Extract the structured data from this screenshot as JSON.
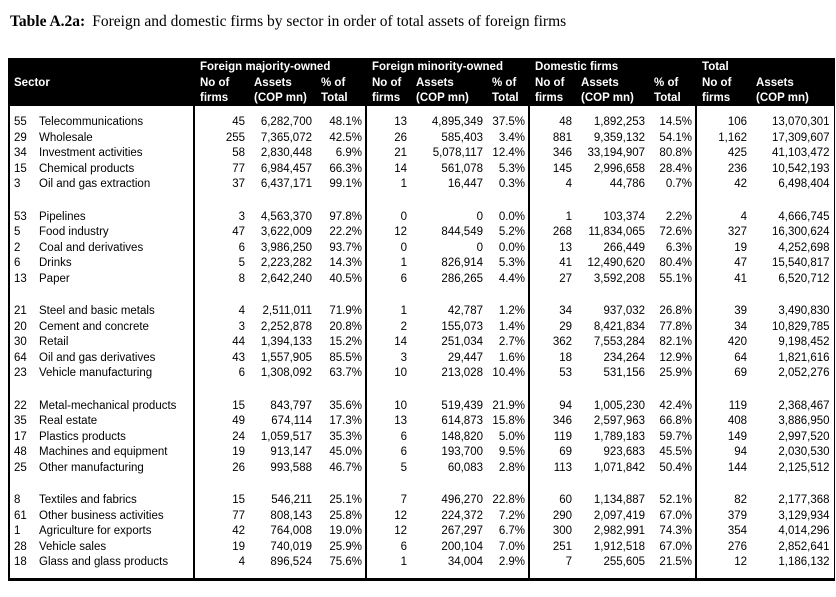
{
  "caption": {
    "label": "Table A.2a:",
    "text": "Foreign and domestic firms by sector in order of total assets of foreign firms"
  },
  "table": {
    "header": {
      "sector": "Sector",
      "group_titles": [
        "Foreign majority-owned",
        "Foreign minority-owned",
        "Domestic firms",
        "Total"
      ],
      "no_of": "No of",
      "firms": "firms",
      "assets": "Assets",
      "cop_mn": "(COP mn)",
      "pct_of": "% of",
      "total": "Total"
    },
    "groups": [
      {
        "rows": [
          {
            "id": "55",
            "sector": "Telecommunications",
            "values": [
              "45",
              "6,282,700",
              "48.1%",
              "13",
              "4,895,349",
              "37.5%",
              "48",
              "1,892,253",
              "14.5%",
              "106",
              "13,070,301"
            ]
          },
          {
            "id": "29",
            "sector": "Wholesale",
            "values": [
              "255",
              "7,365,072",
              "42.5%",
              "26",
              "585,403",
              "3.4%",
              "881",
              "9,359,132",
              "54.1%",
              "1,162",
              "17,309,607"
            ]
          },
          {
            "id": "34",
            "sector": "Investment activities",
            "values": [
              "58",
              "2,830,448",
              "6.9%",
              "21",
              "5,078,117",
              "12.4%",
              "346",
              "33,194,907",
              "80.8%",
              "425",
              "41,103,472"
            ]
          },
          {
            "id": "15",
            "sector": "Chemical products",
            "values": [
              "77",
              "6,984,457",
              "66.3%",
              "14",
              "561,078",
              "5.3%",
              "145",
              "2,996,658",
              "28.4%",
              "236",
              "10,542,193"
            ]
          },
          {
            "id": "3",
            "sector": "Oil and gas extraction",
            "values": [
              "37",
              "6,437,171",
              "99.1%",
              "1",
              "16,447",
              "0.3%",
              "4",
              "44,786",
              "0.7%",
              "42",
              "6,498,404"
            ]
          }
        ]
      },
      {
        "rows": [
          {
            "id": "53",
            "sector": "Pipelines",
            "values": [
              "3",
              "4,563,370",
              "97.8%",
              "0",
              "0",
              "0.0%",
              "1",
              "103,374",
              "2.2%",
              "4",
              "4,666,745"
            ]
          },
          {
            "id": "5",
            "sector": "Food industry",
            "values": [
              "47",
              "3,622,009",
              "22.2%",
              "12",
              "844,549",
              "5.2%",
              "268",
              "11,834,065",
              "72.6%",
              "327",
              "16,300,624"
            ]
          },
          {
            "id": "2",
            "sector": "Coal and derivatives",
            "values": [
              "6",
              "3,986,250",
              "93.7%",
              "0",
              "0",
              "0.0%",
              "13",
              "266,449",
              "6.3%",
              "19",
              "4,252,698"
            ]
          },
          {
            "id": "6",
            "sector": "Drinks",
            "values": [
              "5",
              "2,223,282",
              "14.3%",
              "1",
              "826,914",
              "5.3%",
              "41",
              "12,490,620",
              "80.4%",
              "47",
              "15,540,817"
            ]
          },
          {
            "id": "13",
            "sector": "Paper",
            "values": [
              "8",
              "2,642,240",
              "40.5%",
              "6",
              "286,265",
              "4.4%",
              "27",
              "3,592,208",
              "55.1%",
              "41",
              "6,520,712"
            ]
          }
        ]
      },
      {
        "rows": [
          {
            "id": "21",
            "sector": "Steel and basic metals",
            "values": [
              "4",
              "2,511,011",
              "71.9%",
              "1",
              "42,787",
              "1.2%",
              "34",
              "937,032",
              "26.8%",
              "39",
              "3,490,830"
            ]
          },
          {
            "id": "20",
            "sector": "Cement and concrete",
            "values": [
              "3",
              "2,252,878",
              "20.8%",
              "2",
              "155,073",
              "1.4%",
              "29",
              "8,421,834",
              "77.8%",
              "34",
              "10,829,785"
            ]
          },
          {
            "id": "30",
            "sector": "Retail",
            "values": [
              "44",
              "1,394,133",
              "15.2%",
              "14",
              "251,034",
              "2.7%",
              "362",
              "7,553,284",
              "82.1%",
              "420",
              "9,198,452"
            ]
          },
          {
            "id": "64",
            "sector": "Oil and gas derivatives",
            "values": [
              "43",
              "1,557,905",
              "85.5%",
              "3",
              "29,447",
              "1.6%",
              "18",
              "234,264",
              "12.9%",
              "64",
              "1,821,616"
            ]
          },
          {
            "id": "23",
            "sector": "Vehicle manufacturing",
            "values": [
              "6",
              "1,308,092",
              "63.7%",
              "10",
              "213,028",
              "10.4%",
              "53",
              "531,156",
              "25.9%",
              "69",
              "2,052,276"
            ]
          }
        ]
      },
      {
        "rows": [
          {
            "id": "22",
            "sector": "Metal-mechanical products",
            "values": [
              "15",
              "843,797",
              "35.6%",
              "10",
              "519,439",
              "21.9%",
              "94",
              "1,005,230",
              "42.4%",
              "119",
              "2,368,467"
            ]
          },
          {
            "id": "35",
            "sector": "Real estate",
            "values": [
              "49",
              "674,114",
              "17.3%",
              "13",
              "614,873",
              "15.8%",
              "346",
              "2,597,963",
              "66.8%",
              "408",
              "3,886,950"
            ]
          },
          {
            "id": "17",
            "sector": "Plastics products",
            "values": [
              "24",
              "1,059,517",
              "35.3%",
              "6",
              "148,820",
              "5.0%",
              "119",
              "1,789,183",
              "59.7%",
              "149",
              "2,997,520"
            ]
          },
          {
            "id": "48",
            "sector": "Machines and equipment",
            "values": [
              "19",
              "913,147",
              "45.0%",
              "6",
              "193,700",
              "9.5%",
              "69",
              "923,683",
              "45.5%",
              "94",
              "2,030,530"
            ]
          },
          {
            "id": "25",
            "sector": "Other manufacturing",
            "values": [
              "26",
              "993,588",
              "46.7%",
              "5",
              "60,083",
              "2.8%",
              "113",
              "1,071,842",
              "50.4%",
              "144",
              "2,125,512"
            ]
          }
        ]
      },
      {
        "rows": [
          {
            "id": "8",
            "sector": "Textiles and fabrics",
            "values": [
              "15",
              "546,211",
              "25.1%",
              "7",
              "496,270",
              "22.8%",
              "60",
              "1,134,887",
              "52.1%",
              "82",
              "2,177,368"
            ]
          },
          {
            "id": "61",
            "sector": "Other business activities",
            "values": [
              "77",
              "808,143",
              "25.8%",
              "12",
              "224,372",
              "7.2%",
              "290",
              "2,097,419",
              "67.0%",
              "379",
              "3,129,934"
            ]
          },
          {
            "id": "1",
            "sector": "Agriculture for exports",
            "values": [
              "42",
              "764,008",
              "19.0%",
              "12",
              "267,297",
              "6.7%",
              "300",
              "2,982,991",
              "74.3%",
              "354",
              "4,014,296"
            ]
          },
          {
            "id": "28",
            "sector": "Vehicle sales",
            "values": [
              "19",
              "740,019",
              "25.9%",
              "6",
              "200,104",
              "7.0%",
              "251",
              "1,912,518",
              "67.0%",
              "276",
              "2,852,641"
            ]
          },
          {
            "id": "18",
            "sector": "Glass and glass products",
            "values": [
              "4",
              "896,524",
              "75.6%",
              "1",
              "34,004",
              "2.9%",
              "7",
              "255,605",
              "21.5%",
              "12",
              "1,186,132"
            ]
          }
        ]
      }
    ]
  },
  "colors": {
    "header_bg": "#000000",
    "header_text": "#ffffff",
    "body_text": "#000000",
    "page_bg": "#ffffff"
  }
}
